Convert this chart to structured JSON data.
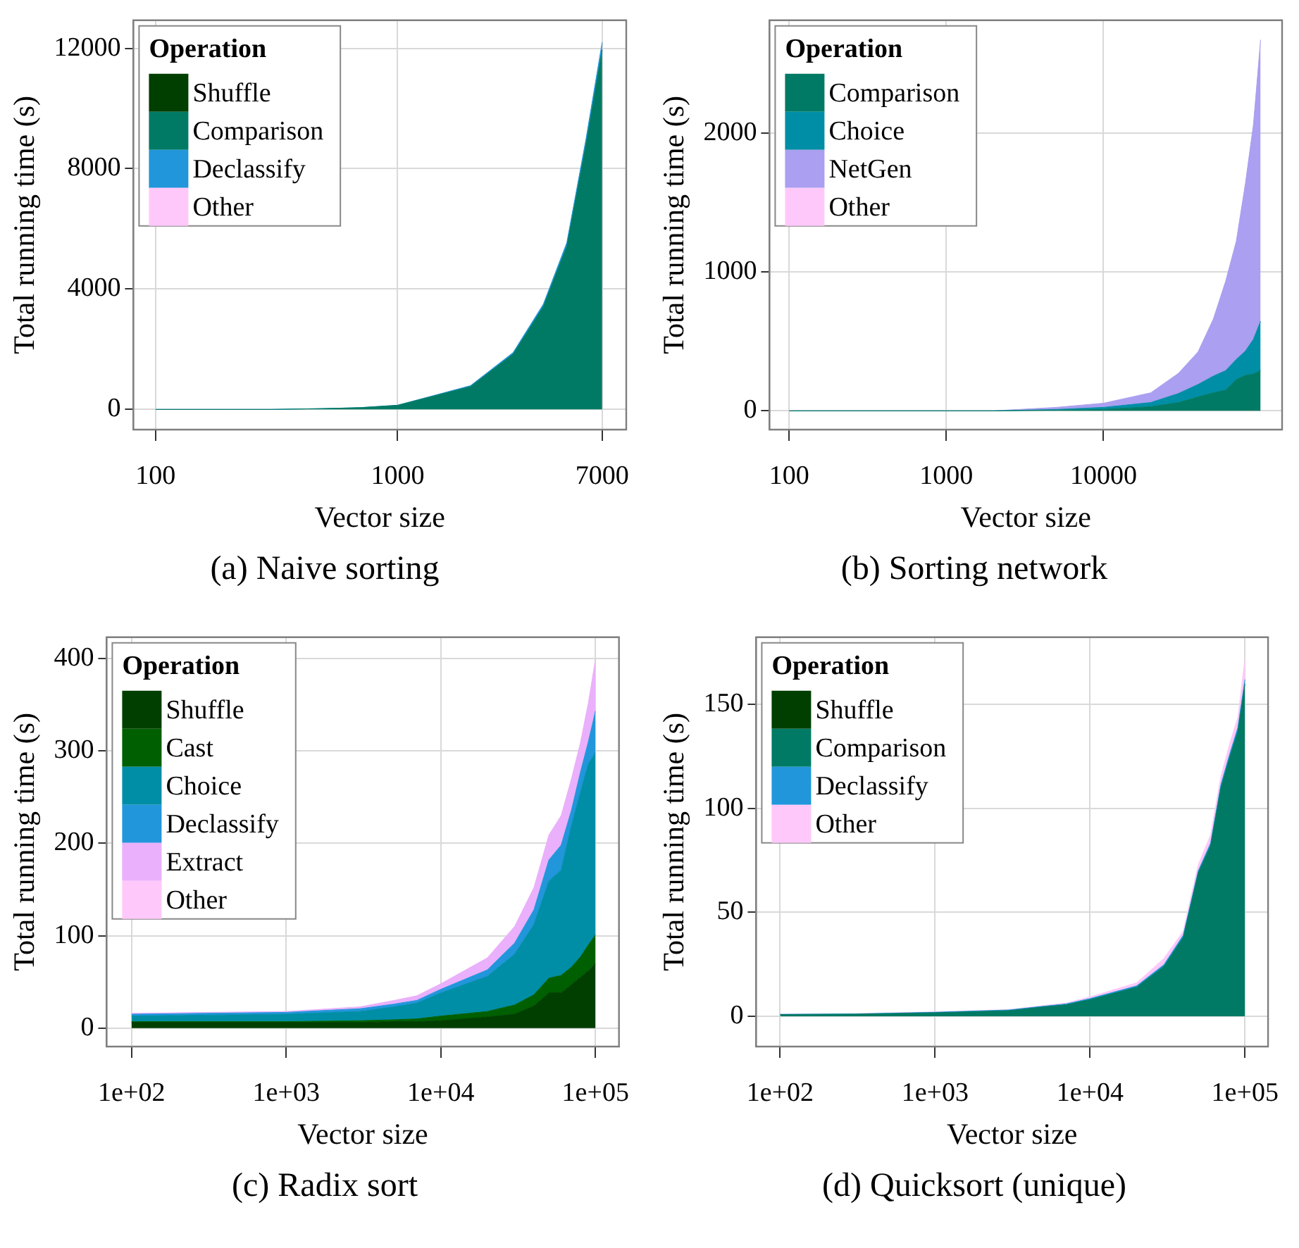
{
  "chart_data": [
    {
      "type": "area",
      "title": "(a) Naive sorting",
      "xlabel": "Vector size",
      "ylabel": "Total running time (s)",
      "legend_title": "Operation",
      "legend": "top left",
      "grid": true,
      "log": "x",
      "stacked": true,
      "x": [
        100,
        200,
        300,
        500,
        700,
        1000,
        2000,
        3000,
        4000,
        5000,
        6000,
        7000
      ],
      "xlim": [
        81,
        8800
      ],
      "xticks": [
        100,
        1000,
        7000
      ],
      "ylim": [
        -670,
        12930
      ],
      "yticks": [
        0,
        4000,
        8000,
        12000
      ],
      "series": [
        {
          "name": "Shuffle",
          "color": "#003f00",
          "values": [
            null,
            null,
            null,
            null,
            null,
            null,
            null,
            null,
            null,
            null,
            null,
            null
          ]
        },
        {
          "name": "Comparison",
          "color": "#007a64",
          "values": [
            0,
            0,
            0,
            30,
            60,
            140,
            760,
            1840,
            3420,
            5420,
            8800,
            11950
          ]
        },
        {
          "name": "Declassify",
          "color": "#2196db",
          "values": [
            0,
            0,
            0,
            0,
            0,
            0,
            30,
            50,
            80,
            120,
            180,
            250
          ]
        },
        {
          "name": "Other",
          "color": "#ffc8fa",
          "values": [
            null,
            null,
            null,
            null,
            null,
            null,
            null,
            null,
            null,
            null,
            null,
            null
          ]
        }
      ]
    },
    {
      "type": "area",
      "title": "(b) Sorting network",
      "xlabel": "Vector size",
      "ylabel": "Total running time (s)",
      "legend_title": "Operation",
      "legend": "top left",
      "grid": true,
      "log": "x",
      "stacked": true,
      "x": [
        100,
        200,
        500,
        1000,
        2000,
        5000,
        10000,
        20000,
        30000,
        40000,
        50000,
        60000,
        70000,
        80000,
        90000,
        100000
      ],
      "xlim": [
        75,
        137000
      ],
      "xticks": [
        100,
        1000,
        10000
      ],
      "ylim": [
        -135,
        2810
      ],
      "yticks": [
        0,
        1000,
        2000
      ],
      "series": [
        {
          "name": "Comparison",
          "color": "#007a64",
          "values": [
            0,
            0,
            0,
            0,
            0,
            5,
            10,
            30,
            60,
            100,
            130,
            150,
            225,
            255,
            265,
            290
          ]
        },
        {
          "name": "Choice",
          "color": "#008ea6",
          "values": [
            0,
            0,
            0,
            0,
            0,
            5,
            15,
            30,
            65,
            90,
            120,
            140,
            145,
            175,
            250,
            355
          ]
        },
        {
          "name": "NetGen",
          "color": "#aa9ff0",
          "values": [
            0,
            0,
            0,
            0,
            0,
            15,
            30,
            70,
            145,
            235,
            410,
            645,
            850,
            1205,
            1545,
            2025
          ]
        },
        {
          "name": "Other",
          "color": "#ffc8fa",
          "values": [
            null,
            null,
            null,
            null,
            null,
            null,
            null,
            null,
            null,
            null,
            null,
            null,
            null,
            null,
            null,
            null
          ]
        }
      ]
    },
    {
      "type": "area",
      "title": "(c) Radix sort",
      "xlabel": "Vector size",
      "ylabel": "Total running time (s)",
      "legend_title": "Operation",
      "legend": "top left",
      "grid": true,
      "log": "x",
      "stacked": true,
      "x": [
        100,
        300,
        1000,
        3000,
        5000,
        7000,
        10000,
        20000,
        30000,
        40000,
        50000,
        60000,
        70000,
        80000,
        90000,
        100000
      ],
      "xlim": [
        69,
        142000
      ],
      "xticks": [
        {
          "value": 100,
          "label": "1e+02"
        },
        {
          "value": 1000,
          "label": "1e+03"
        },
        {
          "value": 10000,
          "label": "1e+04"
        },
        {
          "value": 100000,
          "label": "1e+05"
        }
      ],
      "ylim": [
        -20,
        423
      ],
      "yticks": [
        0,
        100,
        200,
        300,
        400
      ],
      "series": [
        {
          "name": "Shuffle",
          "color": "#003f00",
          "values": [
            6,
            6,
            6,
            6,
            7,
            7,
            8,
            12,
            15,
            24,
            38,
            38,
            47,
            55,
            62,
            70
          ]
        },
        {
          "name": "Cast",
          "color": "#005f00",
          "values": [
            1,
            1,
            1,
            2,
            2,
            3,
            5,
            6,
            10,
            12,
            16,
            19,
            19,
            22,
            28,
            31
          ]
        },
        {
          "name": "Choice",
          "color": "#008ea6",
          "values": [
            6,
            7,
            8,
            10,
            14,
            17,
            25,
            38,
            55,
            76,
            105,
            114,
            153,
            178,
            196,
            197
          ]
        },
        {
          "name": "Declassify",
          "color": "#2196db",
          "values": [
            2,
            2,
            2,
            3,
            3,
            3,
            4,
            7,
            12,
            16,
            23,
            27,
            17,
            22,
            24,
            45
          ]
        },
        {
          "name": "Extract",
          "color": "#eab0fb",
          "values": [
            1,
            1,
            1,
            2,
            4,
            5,
            6,
            13,
            18,
            24,
            27,
            32,
            34,
            32,
            42,
            56
          ]
        },
        {
          "name": "Other",
          "color": "#ffc8fa",
          "values": [
            null,
            null,
            null,
            null,
            null,
            null,
            null,
            null,
            null,
            null,
            null,
            null,
            null,
            null,
            null,
            null
          ]
        }
      ]
    },
    {
      "type": "area",
      "title": "(d) Quicksort (unique)",
      "xlabel": "Vector size",
      "ylabel": "Total running time (s)",
      "legend_title": "Operation",
      "legend": "top left",
      "grid": true,
      "log": "x",
      "stacked": true,
      "x": [
        100,
        300,
        1000,
        3000,
        5000,
        7000,
        10000,
        20000,
        30000,
        40000,
        50000,
        60000,
        70000,
        80000,
        90000,
        100000
      ],
      "xlim": [
        70,
        141000
      ],
      "xticks": [
        {
          "value": 100,
          "label": "1e+02"
        },
        {
          "value": 1000,
          "label": "1e+03"
        },
        {
          "value": 10000,
          "label": "1e+04"
        },
        {
          "value": 100000,
          "label": "1e+05"
        }
      ],
      "ylim": [
        -14.6,
        182.3
      ],
      "yticks": [
        0,
        50,
        100,
        150
      ],
      "series": [
        {
          "name": "Shuffle",
          "color": "#003f00",
          "values": [
            null,
            null,
            null,
            null,
            null,
            null,
            null,
            null,
            null,
            null,
            null,
            null,
            null,
            null,
            null,
            null
          ]
        },
        {
          "name": "Comparison",
          "color": "#007a64",
          "values": [
            0.8,
            1,
            1.7,
            2.7,
            4.5,
            5.5,
            8,
            14,
            24,
            38,
            69,
            82,
            110,
            125,
            137,
            160
          ]
        },
        {
          "name": "Declassify",
          "color": "#2196db",
          "values": [
            0.1,
            0.1,
            0.2,
            0.3,
            0.3,
            0.4,
            0.5,
            0.6,
            0.8,
            1,
            1,
            1.2,
            1.5,
            1.5,
            1.8,
            2
          ]
        },
        {
          "name": "Other",
          "color": "#ffc8fa",
          "values": [
            0.1,
            0.1,
            0.2,
            0.2,
            0.3,
            0.4,
            0.8,
            1.5,
            3,
            2,
            3,
            4,
            4,
            5,
            5,
            10
          ]
        }
      ]
    }
  ]
}
